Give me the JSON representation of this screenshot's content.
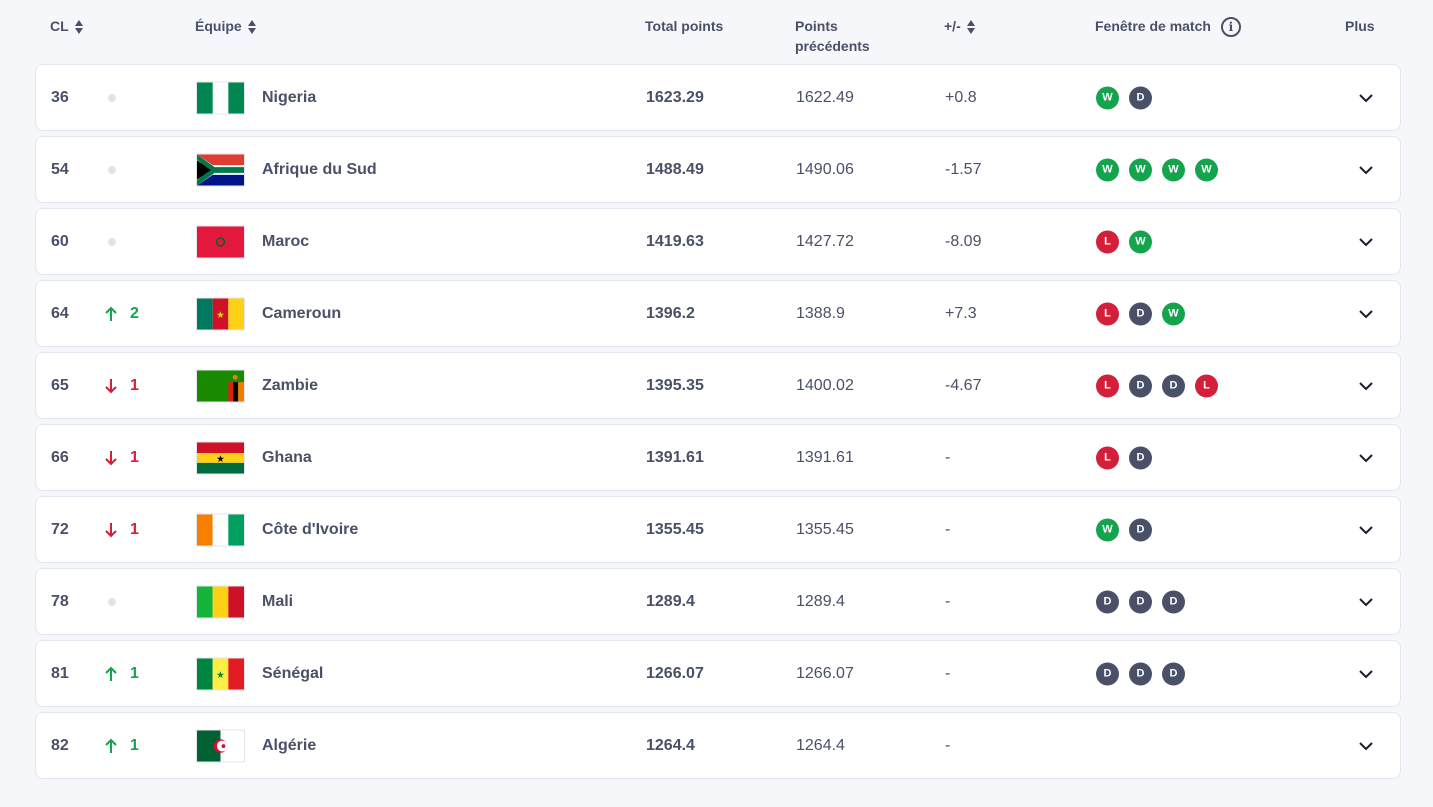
{
  "headers": {
    "rank": "CL",
    "team": "Équipe",
    "total": "Total points",
    "prev": "Points précédents",
    "diff": "+/-",
    "form": "Fenêtre de match",
    "more": "Plus"
  },
  "colors": {
    "W": "#14a44d",
    "D": "#4a5068",
    "L": "#d31f3a"
  },
  "rows": [
    {
      "rank": "36",
      "move": "",
      "dir": "none",
      "flag": "NGA",
      "name": "Nigeria",
      "total": "1623.29",
      "prev": "1622.49",
      "diff": "+0.8",
      "form": [
        "W",
        "D"
      ]
    },
    {
      "rank": "54",
      "move": "",
      "dir": "none",
      "flag": "RSA",
      "name": "Afrique du Sud",
      "total": "1488.49",
      "prev": "1490.06",
      "diff": "-1.57",
      "form": [
        "W",
        "W",
        "W",
        "W"
      ]
    },
    {
      "rank": "60",
      "move": "",
      "dir": "none",
      "flag": "MAR",
      "name": "Maroc",
      "total": "1419.63",
      "prev": "1427.72",
      "diff": "-8.09",
      "form": [
        "L",
        "W"
      ]
    },
    {
      "rank": "64",
      "move": "2",
      "dir": "up",
      "flag": "CMR",
      "name": "Cameroun",
      "total": "1396.2",
      "prev": "1388.9",
      "diff": "+7.3",
      "form": [
        "L",
        "D",
        "W"
      ]
    },
    {
      "rank": "65",
      "move": "1",
      "dir": "down",
      "flag": "ZAM",
      "name": "Zambie",
      "total": "1395.35",
      "prev": "1400.02",
      "diff": "-4.67",
      "form": [
        "L",
        "D",
        "D",
        "L"
      ]
    },
    {
      "rank": "66",
      "move": "1",
      "dir": "down",
      "flag": "GHA",
      "name": "Ghana",
      "total": "1391.61",
      "prev": "1391.61",
      "diff": "-",
      "form": [
        "L",
        "D"
      ]
    },
    {
      "rank": "72",
      "move": "1",
      "dir": "down",
      "flag": "CIV",
      "name": "Côte d'Ivoire",
      "total": "1355.45",
      "prev": "1355.45",
      "diff": "-",
      "form": [
        "W",
        "D"
      ]
    },
    {
      "rank": "78",
      "move": "",
      "dir": "none",
      "flag": "MLI",
      "name": "Mali",
      "total": "1289.4",
      "prev": "1289.4",
      "diff": "-",
      "form": [
        "D",
        "D",
        "D"
      ]
    },
    {
      "rank": "81",
      "move": "1",
      "dir": "up",
      "flag": "SEN",
      "name": "Sénégal",
      "total": "1266.07",
      "prev": "1266.07",
      "diff": "-",
      "form": [
        "D",
        "D",
        "D"
      ]
    },
    {
      "rank": "82",
      "move": "1",
      "dir": "up",
      "flag": "ALG",
      "name": "Algérie",
      "total": "1264.4",
      "prev": "1264.4",
      "diff": "-",
      "form": []
    }
  ]
}
